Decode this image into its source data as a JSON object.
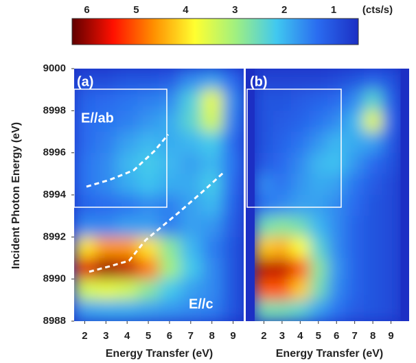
{
  "colorbar": {
    "ticks": [
      6,
      5,
      4,
      3,
      2,
      1
    ],
    "unit": "(cts/s)",
    "clim": [
      0.5,
      6.3
    ],
    "colormap": [
      "#1c2fc4",
      "#2a6cf0",
      "#40c8f0",
      "#a0f080",
      "#ffff30",
      "#ff9000",
      "#ff1000",
      "#600000"
    ]
  },
  "chart_data": [
    {
      "type": "heatmap",
      "panel_label": "(a)",
      "annotations": [
        "E//ab",
        "E//c"
      ],
      "xlabel": "Energy Transfer (eV)",
      "ylabel": "Incident Photon Energy (eV)",
      "xlim": [
        1.5,
        9.5
      ],
      "xticks": [
        2,
        3,
        4,
        5,
        6,
        7,
        8,
        9
      ],
      "ylim": [
        8988,
        9000
      ],
      "yticks": [
        8988,
        8990,
        8992,
        8994,
        8996,
        8998,
        9000
      ],
      "x": [
        2,
        3,
        4,
        5,
        6,
        7,
        8,
        9
      ],
      "y": [
        8999.5,
        8998.5,
        8997.5,
        8996.5,
        8995.5,
        8994.5,
        8993.5,
        8992.5,
        8991.5,
        8990.5,
        8989.5,
        8988.5
      ],
      "z": [
        [
          0.9,
          0.9,
          1.0,
          1.0,
          1.1,
          1.6,
          1.8,
          1.3
        ],
        [
          1.2,
          1.3,
          1.4,
          1.5,
          1.6,
          2.3,
          3.6,
          1.6
        ],
        [
          1.3,
          1.4,
          1.5,
          1.7,
          1.9,
          2.4,
          3.4,
          1.5
        ],
        [
          1.3,
          1.5,
          1.8,
          2.0,
          1.9,
          2.0,
          2.2,
          1.3
        ],
        [
          1.4,
          1.6,
          2.0,
          2.2,
          2.0,
          1.8,
          2.0,
          1.4
        ],
        [
          1.4,
          1.6,
          1.9,
          2.1,
          1.9,
          1.9,
          2.2,
          1.3
        ],
        [
          1.2,
          1.3,
          1.4,
          1.6,
          1.5,
          1.8,
          2.0,
          1.2
        ],
        [
          1.6,
          1.6,
          1.8,
          1.8,
          1.5,
          1.8,
          1.7,
          1.1
        ],
        [
          4.0,
          4.6,
          4.6,
          4.0,
          2.8,
          2.0,
          1.5,
          1.0
        ],
        [
          5.6,
          6.0,
          5.8,
          4.8,
          3.0,
          2.2,
          1.6,
          1.0
        ],
        [
          3.4,
          3.6,
          3.4,
          2.8,
          2.2,
          1.8,
          1.6,
          1.0
        ],
        [
          1.8,
          1.9,
          1.9,
          1.8,
          1.7,
          1.6,
          1.5,
          1.0
        ]
      ]
    },
    {
      "type": "heatmap",
      "panel_label": "(b)",
      "xlabel": "Energy Transfer (eV)",
      "xlim": [
        1,
        10
      ],
      "xticks": [
        2,
        3,
        4,
        5,
        6,
        7,
        8,
        9
      ],
      "ylim": [
        8988,
        9000
      ],
      "x": [
        2,
        3,
        4,
        5,
        6,
        7,
        8,
        9
      ],
      "y": [
        8999.5,
        8998.5,
        8997.5,
        8996.5,
        8995.5,
        8994.5,
        8993.5,
        8992.5,
        8991.5,
        8990.5,
        8989.5,
        8988.5
      ],
      "z": [
        [
          0.8,
          0.8,
          0.8,
          0.8,
          0.9,
          1.0,
          1.2,
          1.0
        ],
        [
          1.0,
          1.0,
          1.1,
          1.2,
          1.3,
          1.6,
          2.4,
          1.2
        ],
        [
          1.0,
          1.1,
          1.2,
          1.4,
          1.6,
          2.0,
          3.6,
          1.3
        ],
        [
          1.0,
          1.2,
          1.4,
          1.7,
          2.0,
          1.9,
          1.8,
          1.1
        ],
        [
          1.1,
          1.3,
          1.6,
          2.0,
          2.1,
          1.7,
          1.3,
          1.0
        ],
        [
          1.6,
          1.4,
          1.7,
          1.9,
          1.8,
          1.4,
          1.1,
          0.9
        ],
        [
          1.4,
          1.6,
          1.8,
          1.8,
          1.6,
          1.3,
          1.0,
          0.9
        ],
        [
          2.6,
          2.8,
          2.6,
          2.0,
          1.6,
          1.2,
          1.0,
          0.9
        ],
        [
          4.2,
          4.4,
          3.8,
          2.4,
          1.6,
          1.2,
          1.0,
          0.9
        ],
        [
          5.8,
          5.8,
          5.0,
          2.8,
          1.7,
          1.2,
          1.0,
          0.9
        ],
        [
          5.0,
          5.0,
          4.2,
          2.6,
          1.6,
          1.2,
          1.0,
          0.9
        ],
        [
          2.6,
          2.6,
          2.4,
          1.8,
          1.4,
          1.1,
          1.0,
          0.9
        ]
      ]
    }
  ]
}
